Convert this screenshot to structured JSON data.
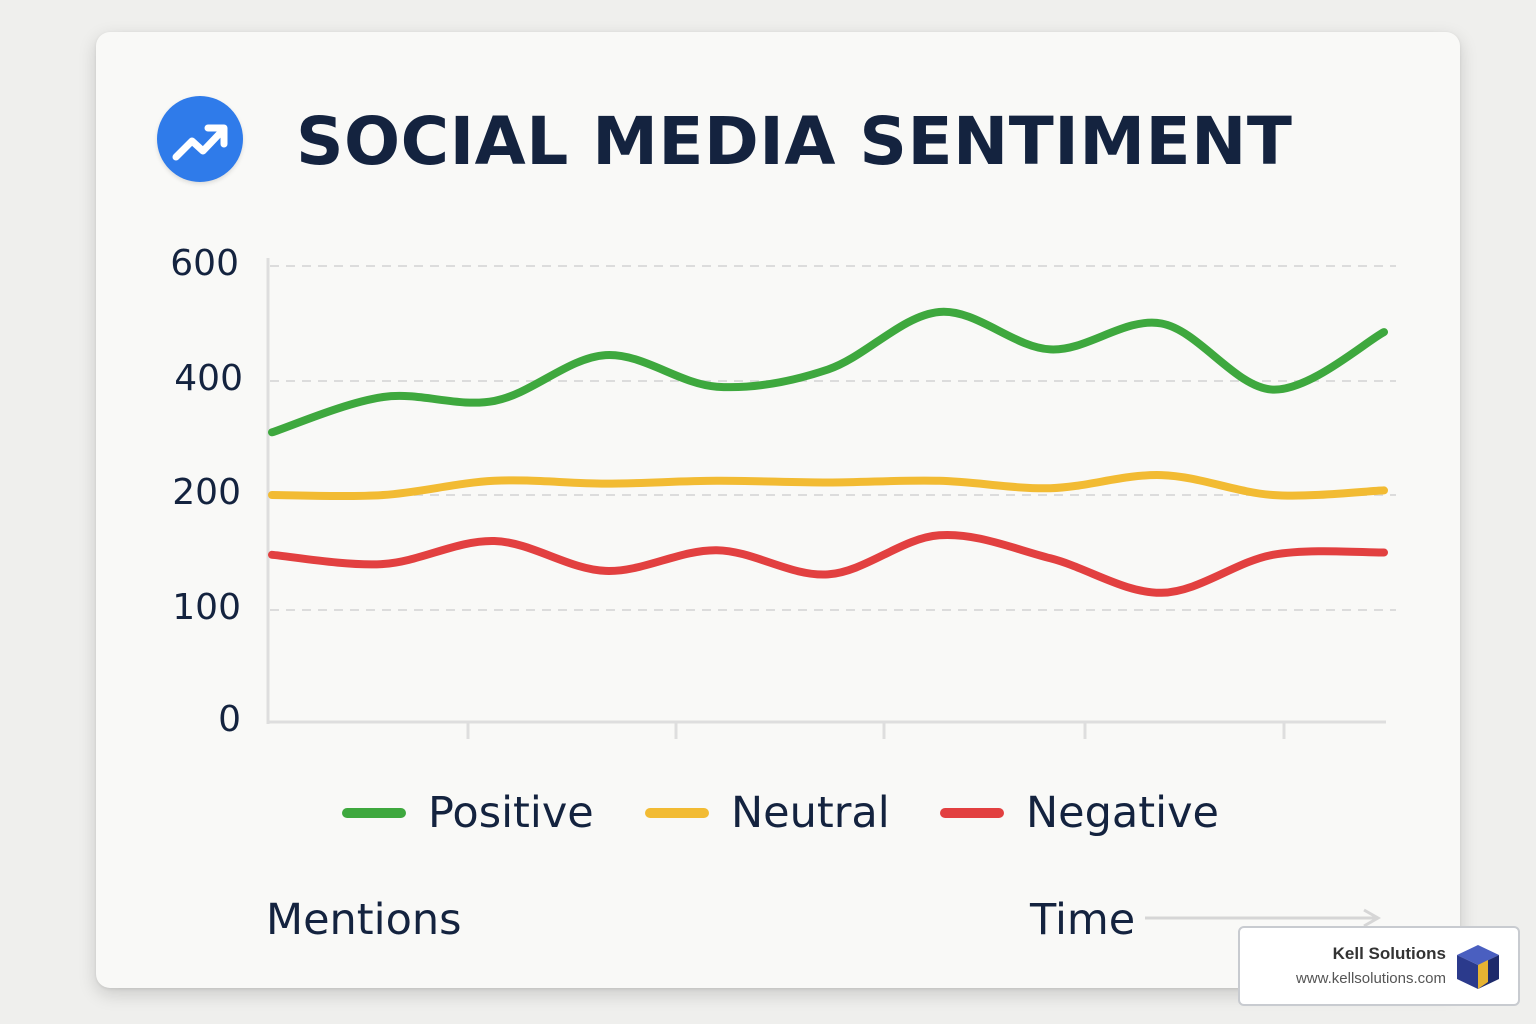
{
  "title": "SOCIAL MEDIA SENTIMENT",
  "icons": {
    "title_icon": "trending-up-icon",
    "time_arrow": "arrow-right-icon",
    "brand_logo": "cube-logo-icon"
  },
  "colors": {
    "icon_bg": "#2f7bea",
    "positive": "#3ea83e",
    "neutral": "#f2bb33",
    "negative": "#e24040",
    "text": "#14233f",
    "grid": "#dcdcdc"
  },
  "axis_labels": {
    "y": "Mentions",
    "x": "Time"
  },
  "watermark": {
    "name": "Kell Solutions",
    "url": "www.kellsolutions.com"
  },
  "chart_data": {
    "type": "line",
    "yticks": [
      "0",
      "100",
      "200",
      "400",
      "600"
    ],
    "x": [
      0,
      1,
      2,
      3,
      4,
      5,
      6,
      7,
      8,
      9,
      10
    ],
    "grid": true,
    "legend_position": "bottom",
    "series": [
      {
        "name": "Positive",
        "color": "#3ea83e",
        "values": [
          310,
          372,
          365,
          445,
          390,
          420,
          520,
          455,
          500,
          385,
          485
        ]
      },
      {
        "name": "Neutral",
        "color": "#f2bb33",
        "values": [
          200,
          200,
          225,
          220,
          225,
          222,
          225,
          212,
          235,
          200,
          208
        ]
      },
      {
        "name": "Negative",
        "color": "#e24040",
        "values": [
          148,
          140,
          160,
          134,
          152,
          131,
          165,
          145,
          115,
          148,
          150
        ]
      }
    ]
  }
}
